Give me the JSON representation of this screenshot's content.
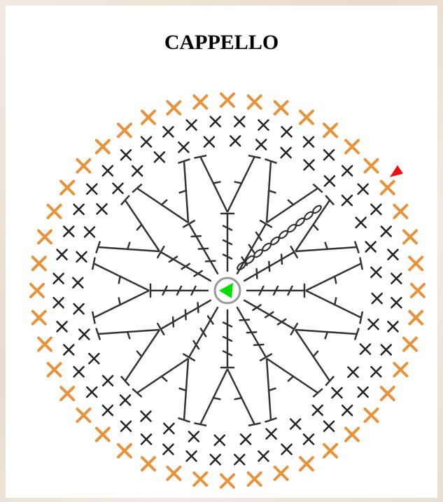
{
  "title": "CAPPELLO"
}
